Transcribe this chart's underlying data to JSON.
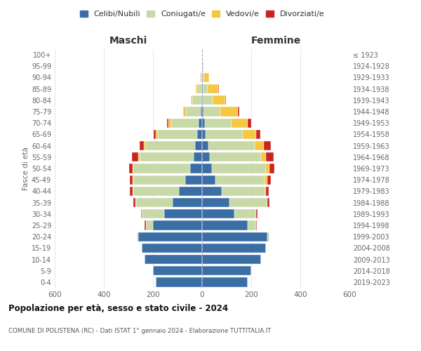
{
  "age_groups": [
    "0-4",
    "5-9",
    "10-14",
    "15-19",
    "20-24",
    "25-29",
    "30-34",
    "35-39",
    "40-44",
    "45-49",
    "50-54",
    "55-59",
    "60-64",
    "65-69",
    "70-74",
    "75-79",
    "80-84",
    "85-89",
    "90-94",
    "95-99",
    "100+"
  ],
  "birth_years": [
    "2019-2023",
    "2014-2018",
    "2009-2013",
    "2004-2008",
    "1999-2003",
    "1994-1998",
    "1989-1993",
    "1984-1988",
    "1979-1983",
    "1974-1978",
    "1969-1973",
    "1964-1968",
    "1959-1963",
    "1954-1958",
    "1949-1953",
    "1944-1948",
    "1939-1943",
    "1934-1938",
    "1929-1933",
    "1924-1928",
    "≤ 1923"
  ],
  "males": {
    "celibi": [
      190,
      200,
      235,
      245,
      260,
      200,
      155,
      120,
      95,
      70,
      50,
      35,
      30,
      20,
      15,
      6,
      4,
      2,
      0,
      0,
      0
    ],
    "coniugati": [
      0,
      0,
      0,
      0,
      5,
      30,
      90,
      150,
      185,
      210,
      230,
      220,
      200,
      160,
      110,
      60,
      35,
      18,
      5,
      1,
      0
    ],
    "vedovi": [
      0,
      0,
      0,
      0,
      0,
      0,
      0,
      1,
      2,
      3,
      4,
      5,
      6,
      8,
      12,
      10,
      8,
      5,
      3,
      0,
      0
    ],
    "divorziati": [
      0,
      0,
      0,
      0,
      0,
      3,
      5,
      8,
      12,
      12,
      12,
      25,
      18,
      8,
      5,
      0,
      0,
      0,
      0,
      0,
      0
    ]
  },
  "females": {
    "nubili": [
      185,
      200,
      240,
      260,
      265,
      185,
      130,
      110,
      80,
      55,
      40,
      30,
      25,
      15,
      10,
      5,
      3,
      2,
      0,
      0,
      0
    ],
    "coniugate": [
      0,
      0,
      0,
      0,
      8,
      35,
      90,
      155,
      175,
      200,
      220,
      210,
      190,
      150,
      110,
      70,
      40,
      20,
      8,
      2,
      0
    ],
    "vedove": [
      0,
      0,
      0,
      0,
      0,
      0,
      0,
      2,
      5,
      10,
      15,
      20,
      35,
      55,
      65,
      70,
      50,
      45,
      20,
      5,
      0
    ],
    "divorziate": [
      0,
      0,
      0,
      0,
      0,
      2,
      5,
      8,
      10,
      15,
      20,
      30,
      30,
      18,
      15,
      5,
      3,
      2,
      0,
      0,
      0
    ]
  },
  "colors": {
    "celibi": "#3a6ea5",
    "coniugati": "#c8d9a8",
    "vedovi": "#f5c842",
    "divorziati": "#cc2222"
  },
  "legend_labels": [
    "Celibi/Nubili",
    "Coniugati/e",
    "Vedovi/e",
    "Divorziati/e"
  ],
  "title": "Popolazione per età, sesso e stato civile - 2024",
  "subtitle": "COMUNE DI POLISTENA (RC) - Dati ISTAT 1° gennaio 2024 - Elaborazione TUTTITALIA.IT",
  "xlabel_left": "Maschi",
  "xlabel_right": "Femmine",
  "ylabel_left": "Fasce di età",
  "xlim": 600,
  "background_color": "#ffffff"
}
